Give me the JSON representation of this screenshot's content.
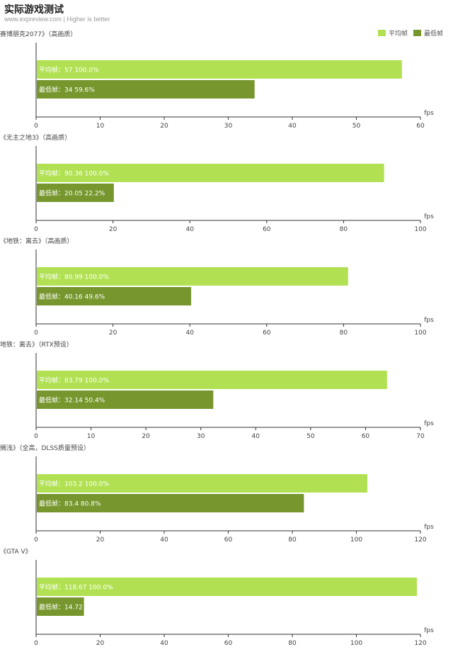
{
  "header": {
    "title": "实际游戏测试",
    "subtitle": "www.expreview.com | Higher is better"
  },
  "legend": [
    {
      "label": "平均帧",
      "color": "#b1e153"
    },
    {
      "label": "最低帧",
      "color": "#77972e"
    }
  ],
  "colors": {
    "avg": "#b1e153",
    "min": "#77972e",
    "axis": "#333333"
  },
  "axis_unit": "fps",
  "chart_data": [
    {
      "type": "bar",
      "title": "赛博朋克2077》（高画质）",
      "xlabel": "fps",
      "xlim": [
        0,
        60
      ],
      "ticks": [
        0,
        10,
        20,
        30,
        40,
        50,
        60
      ],
      "series": [
        {
          "name": "平均帧",
          "value": 57,
          "label": "平均帧：57  100.0%"
        },
        {
          "name": "最低帧",
          "value": 34,
          "label": "最低帧：34  59.6%"
        }
      ]
    },
    {
      "type": "bar",
      "title": "《无主之地3》（高画质）",
      "xlabel": "fps",
      "xlim": [
        0,
        100
      ],
      "ticks": [
        0,
        20,
        40,
        60,
        80,
        100
      ],
      "series": [
        {
          "name": "平均帧",
          "value": 90.36,
          "label": "平均帧：90.36  100.0%"
        },
        {
          "name": "最低帧",
          "value": 20.05,
          "label": "最低帧：20.05  22.2%"
        }
      ]
    },
    {
      "type": "bar",
      "title": "《地铁：离去》（高画质）",
      "xlabel": "fps",
      "xlim": [
        0,
        100
      ],
      "ticks": [
        0,
        20,
        40,
        60,
        80,
        100
      ],
      "series": [
        {
          "name": "平均帧",
          "value": 80.99,
          "label": "平均帧：80.99  100.0%"
        },
        {
          "name": "最低帧",
          "value": 40.16,
          "label": "最低帧：40.16  49.6%"
        }
      ]
    },
    {
      "type": "bar",
      "title": "地铁：离去》（RTX预设）",
      "xlabel": "fps",
      "xlim": [
        0,
        70
      ],
      "ticks": [
        0,
        10,
        20,
        30,
        40,
        50,
        60,
        70
      ],
      "series": [
        {
          "name": "平均帧",
          "value": 63.79,
          "label": "平均帧：63.79  100.0%"
        },
        {
          "name": "最低帧",
          "value": 32.14,
          "label": "最低帧：32.14  50.4%"
        }
      ]
    },
    {
      "type": "bar",
      "title": "搁浅》（全高，DLSS质量预设）",
      "xlabel": "fps",
      "xlim": [
        0,
        120
      ],
      "ticks": [
        0,
        20,
        40,
        60,
        80,
        100,
        120
      ],
      "series": [
        {
          "name": "平均帧",
          "value": 103.2,
          "label": "平均帧：103.2  100.0%"
        },
        {
          "name": "最低帧",
          "value": 83.4,
          "label": "最低帧：83.4  80.8%"
        }
      ]
    },
    {
      "type": "bar",
      "title": "《GTA V》",
      "xlabel": "fps",
      "xlim": [
        0,
        120
      ],
      "ticks": [
        0,
        20,
        40,
        60,
        80,
        100,
        120
      ],
      "series": [
        {
          "name": "平均帧",
          "value": 118.67,
          "label": "平均帧：118.67  100.0%"
        },
        {
          "name": "最低帧",
          "value": 14.72,
          "label": "最低帧：14.72"
        }
      ]
    }
  ]
}
